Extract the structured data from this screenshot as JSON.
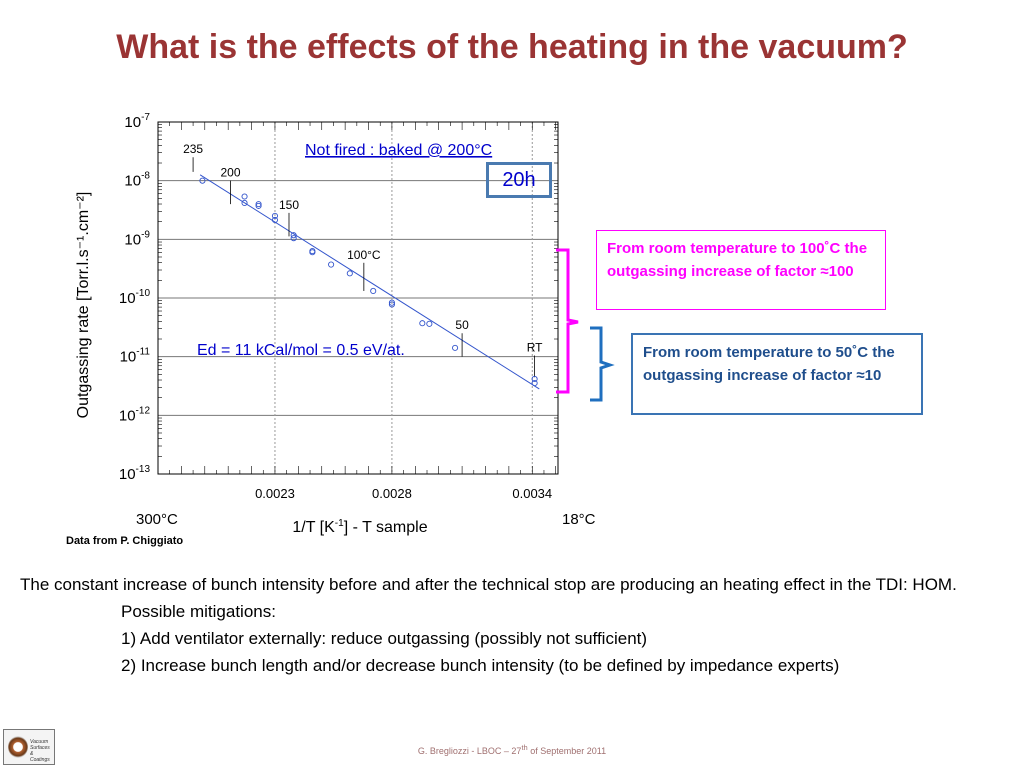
{
  "slide": {
    "title": "What is the effects of the heating in the vacuum?",
    "box_20h": "20h",
    "note_pink": "From room temperature to 100˚C the outgassing increase of factor  ≈100",
    "note_blue": "From room temperature to 50˚C the outgassing increase of factor ≈10",
    "credit": "Data from P. Chiggiato",
    "body_line1": "The constant increase of bunch intensity before and after the technical stop are producing an heating effect in the TDI: HOM.",
    "body_line2": "Possible mitigations:",
    "body_line3": "1) Add ventilator externally: reduce outgassing (possibly not sufficient)",
    "body_line4": "2) Increase bunch length and/or decrease bunch intensity (to be defined by impedance experts)",
    "footer_pre": "G. Bregliozzi - LBOC – 27",
    "footer_sup": "th",
    "footer_post": " of September 2011",
    "logo_text": [
      "Vacuum",
      "Surfaces",
      "&",
      "Coatings"
    ]
  },
  "chart_data": {
    "type": "scatter",
    "x_scale": "reciprocal-temperature",
    "y_scale": "log",
    "xlabel_main": "1/T [K",
    "xlabel_sup": "-1",
    "xlabel_post": "] - T sample",
    "ylabel": "Outgassing rate [Torr.l.s⁻¹.cm⁻²]",
    "x_ticks": [
      {
        "value": 0.0023,
        "label": "0.0023"
      },
      {
        "value": 0.0028,
        "label": "0.0028"
      },
      {
        "value": 0.0034,
        "label": "0.0034"
      }
    ],
    "y_ticks": [
      {
        "value": -7,
        "label": "-7"
      },
      {
        "value": -8,
        "label": "-8"
      },
      {
        "value": -9,
        "label": "-9"
      },
      {
        "value": -10,
        "label": "-10"
      },
      {
        "value": -11,
        "label": "-11"
      },
      {
        "value": -12,
        "label": "-12"
      },
      {
        "value": -13,
        "label": "-13"
      }
    ],
    "y_tick_base": "10",
    "xlim": [
      0.0018,
      0.00351
    ],
    "ylim": [
      -13,
      -7
    ],
    "temp_left_label": "300°C",
    "temp_right_label": "18°C",
    "series_title": "Not fired : baked @ 200°C",
    "fit_label": "Ed = 11 kCal/mol = 0.5 eV/at.",
    "points": [
      {
        "x": 0.00199,
        "y": -8.0
      },
      {
        "x": 0.00217,
        "y": -8.27
      },
      {
        "x": 0.00217,
        "y": -8.38
      },
      {
        "x": 0.00223,
        "y": -8.4
      },
      {
        "x": 0.00223,
        "y": -8.43
      },
      {
        "x": 0.0023,
        "y": -8.6
      },
      {
        "x": 0.0023,
        "y": -8.67
      },
      {
        "x": 0.00238,
        "y": -8.93
      },
      {
        "x": 0.00238,
        "y": -8.98
      },
      {
        "x": 0.00246,
        "y": -9.2
      },
      {
        "x": 0.00246,
        "y": -9.22
      },
      {
        "x": 0.00254,
        "y": -9.43
      },
      {
        "x": 0.00262,
        "y": -9.58
      },
      {
        "x": 0.00272,
        "y": -9.88
      },
      {
        "x": 0.0028,
        "y": -10.08
      },
      {
        "x": 0.0028,
        "y": -10.11
      },
      {
        "x": 0.00293,
        "y": -10.43
      },
      {
        "x": 0.00296,
        "y": -10.44
      },
      {
        "x": 0.00307,
        "y": -10.85
      },
      {
        "x": 0.00341,
        "y": -11.38
      },
      {
        "x": 0.00341,
        "y": -11.45
      }
    ],
    "fit_line": [
      {
        "x": 0.00198,
        "y": -7.9
      },
      {
        "x": 0.00343,
        "y": -11.55
      }
    ],
    "markers": [
      {
        "label": "235",
        "x": 0.00195,
        "y0": -7.6,
        "y1": -7.85
      },
      {
        "label": "200",
        "x": 0.00211,
        "y0": -8.0,
        "y1": -8.4
      },
      {
        "label": "150",
        "x": 0.00236,
        "y0": -8.55,
        "y1": -8.95
      },
      {
        "label": "100°C",
        "x": 0.00268,
        "y0": -9.4,
        "y1": -9.88
      },
      {
        "label": "50",
        "x": 0.0031,
        "y0": -10.6,
        "y1": -11.0
      },
      {
        "label": "RT",
        "x": 0.00341,
        "y0": -10.98,
        "y1": -11.35
      }
    ]
  }
}
